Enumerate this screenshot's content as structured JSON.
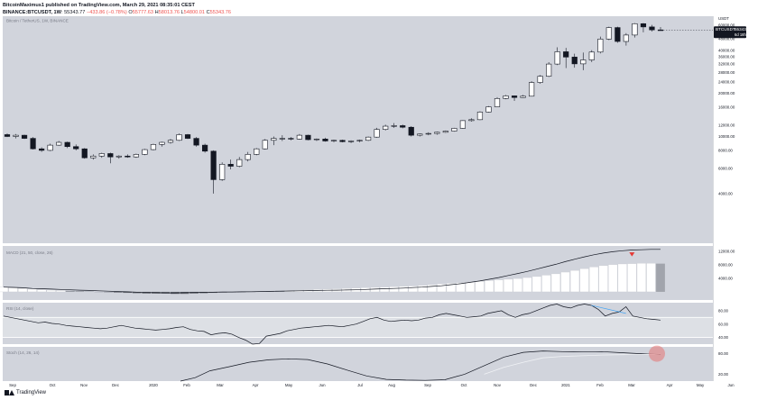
{
  "header": {
    "line1": "BitcoinMaximus1 published on TradingView.com, March 29, 2021 08:35:01 CEST",
    "symbol": "BINANCE:BTCUSDT, 1W",
    "last": "55343.77",
    "change": "−433.86 (−0.78%)",
    "o": "O",
    "o_val": "55777.63",
    "h": "H",
    "h_val": "58013.76",
    "l": "L",
    "l_val": "54800.01",
    "c": "C",
    "c_val": "55343.76"
  },
  "colors": {
    "background": "#d1d4dc",
    "bull": "#ffffff",
    "bear": "#131722",
    "line": "#131722",
    "accent_red": "#e53935",
    "accent_blue": "#42a5f5"
  },
  "chart_data": [
    {
      "type": "candlestick",
      "title": "Bitcoin / TetherUS, 1W, BINANCE",
      "price_tag": {
        "label": "BTCUSDT",
        "value": "55343.76",
        "countdown": "6d 18h"
      },
      "yticks": [
        "4000.00",
        "6000.00",
        "8000.00",
        "10000.00",
        "12000.00",
        "16000.00",
        "20000.00",
        "24000.00",
        "28000.00",
        "32000.00",
        "36000.00",
        "40000.00",
        "48000.00",
        "52000.00",
        "56000.00",
        "60000.00",
        "64000.00"
      ],
      "ytick_values": [
        4000,
        6000,
        8000,
        10000,
        12000,
        16000,
        20000,
        24000,
        28000,
        32000,
        36000,
        40000,
        48000,
        52000,
        56000,
        60000,
        64000
      ],
      "ylim": [
        1800,
        69000
      ],
      "ytop_label": "USDT",
      "xticks": [
        "Sep",
        "Oct",
        "Nov",
        "Dec",
        "2020",
        "Feb",
        "Mar",
        "Apr",
        "May",
        "Jun",
        "Jul",
        "Aug",
        "Sep",
        "Oct",
        "Nov",
        "Dec",
        "2021",
        "Feb",
        "Mar",
        "Apr",
        "May",
        "Jun"
      ],
      "candles": [
        [
          10300,
          10500,
          9900,
          10000
        ],
        [
          10000,
          10400,
          9700,
          10200
        ],
        [
          10200,
          10300,
          9600,
          9700
        ],
        [
          9700,
          9900,
          8100,
          8200
        ],
        [
          8200,
          8400,
          7800,
          8000
        ],
        [
          8000,
          8900,
          7900,
          8700
        ],
        [
          8700,
          9300,
          8600,
          9100
        ],
        [
          9100,
          9200,
          8300,
          8500
        ],
        [
          8500,
          8800,
          8000,
          8200
        ],
        [
          8200,
          8300,
          7000,
          7100
        ],
        [
          7100,
          7500,
          6900,
          7300
        ],
        [
          7300,
          7700,
          7100,
          7600
        ],
        [
          7600,
          7700,
          6500,
          7200
        ],
        [
          7200,
          7400,
          7000,
          7300
        ],
        [
          7300,
          7500,
          7100,
          7200
        ],
        [
          7200,
          7600,
          7100,
          7500
        ],
        [
          7500,
          8200,
          7400,
          8100
        ],
        [
          8100,
          8900,
          8000,
          8800
        ],
        [
          8800,
          9200,
          8500,
          9100
        ],
        [
          9100,
          9600,
          8900,
          9400
        ],
        [
          9400,
          10500,
          9300,
          10300
        ],
        [
          10300,
          10400,
          9600,
          9700
        ],
        [
          9700,
          9900,
          8500,
          8700
        ],
        [
          8700,
          8900,
          7700,
          7900
        ],
        [
          7900,
          8000,
          4000,
          5000
        ],
        [
          5000,
          6600,
          4900,
          6400
        ],
        [
          6400,
          6900,
          5900,
          6200
        ],
        [
          6200,
          7200,
          6100,
          6900
        ],
        [
          6900,
          7800,
          6700,
          7500
        ],
        [
          7500,
          8300,
          7400,
          8200
        ],
        [
          8200,
          9600,
          8100,
          9400
        ],
        [
          9400,
          10000,
          8700,
          9700
        ],
        [
          9700,
          10200,
          9300,
          9700
        ],
        [
          9700,
          9900,
          9400,
          9600
        ],
        [
          9600,
          10400,
          9500,
          10200
        ],
        [
          10200,
          10300,
          9400,
          9500
        ],
        [
          9500,
          9700,
          9300,
          9600
        ],
        [
          9600,
          9800,
          9200,
          9300
        ],
        [
          9300,
          9500,
          9100,
          9400
        ],
        [
          9400,
          9500,
          9100,
          9200
        ],
        [
          9200,
          9400,
          9000,
          9300
        ],
        [
          9300,
          9500,
          9100,
          9400
        ],
        [
          9400,
          10000,
          9300,
          9900
        ],
        [
          9900,
          11500,
          9800,
          11200
        ],
        [
          11200,
          12100,
          11000,
          11800
        ],
        [
          11800,
          12400,
          11500,
          11900
        ],
        [
          11900,
          12100,
          11400,
          11600
        ],
        [
          11600,
          11800,
          10000,
          10200
        ],
        [
          10200,
          10500,
          10000,
          10400
        ],
        [
          10400,
          10700,
          10200,
          10500
        ],
        [
          10500,
          10800,
          10300,
          10700
        ],
        [
          10700,
          11000,
          10600,
          10900
        ],
        [
          10900,
          11500,
          10800,
          11400
        ],
        [
          11400,
          13000,
          11300,
          12900
        ],
        [
          12900,
          13400,
          12700,
          13100
        ],
        [
          13100,
          15000,
          13000,
          14800
        ],
        [
          14800,
          16300,
          14700,
          16100
        ],
        [
          16100,
          18800,
          16000,
          18400
        ],
        [
          18400,
          19500,
          18200,
          19200
        ],
        [
          19200,
          19300,
          17700,
          18700
        ],
        [
          18700,
          19500,
          18600,
          19100
        ],
        [
          19100,
          24300,
          19000,
          23800
        ],
        [
          23800,
          26800,
          23300,
          26300
        ],
        [
          26300,
          33000,
          26000,
          32000
        ],
        [
          32000,
          41900,
          31500,
          39000
        ],
        [
          39000,
          41500,
          30000,
          35800
        ],
        [
          35800,
          37800,
          30200,
          32100
        ],
        [
          32100,
          38500,
          29000,
          34200
        ],
        [
          34200,
          40000,
          33000,
          38800
        ],
        [
          38800,
          49700,
          38000,
          47800
        ],
        [
          47800,
          58300,
          47000,
          57500
        ],
        [
          57500,
          58300,
          45000,
          46000
        ],
        [
          46000,
          52600,
          43000,
          51000
        ],
        [
          51000,
          61800,
          49000,
          61200
        ],
        [
          61200,
          61800,
          53300,
          58100
        ],
        [
          58100,
          60000,
          54000,
          55400
        ],
        [
          55400,
          58000,
          54800,
          55343
        ]
      ]
    },
    {
      "type": "histogram+line",
      "title": "MACD (21, 50, close, 26)",
      "yticks": [
        "12000.00",
        "8000.00",
        "4000.00"
      ],
      "ytick_values": [
        12000,
        8000,
        4000
      ],
      "ylim": [
        -2400,
        13500
      ],
      "histogram": [
        1400,
        1200,
        1000,
        800,
        600,
        500,
        400,
        300,
        200,
        100,
        0,
        -100,
        -200,
        -300,
        -400,
        -500,
        -500,
        -500,
        -600,
        -600,
        -500,
        -400,
        -300,
        -200,
        -100,
        -100,
        0,
        100,
        200,
        300,
        400,
        500,
        600,
        700,
        800,
        900,
        1000,
        1100,
        1200,
        1300,
        1400,
        1500,
        1600,
        1700,
        1900,
        2100,
        2300,
        2500,
        2700,
        2900,
        3100,
        3300,
        3500,
        3700,
        3900,
        4200,
        4500,
        4900,
        5300,
        5800,
        6300,
        6800,
        7300,
        7700,
        8000,
        8200,
        8300,
        8400,
        8400,
        8300
      ],
      "macd_line": [
        1400,
        1300,
        1200,
        1000,
        900,
        800,
        700,
        600,
        500,
        400,
        300,
        200,
        100,
        0,
        -100,
        -200,
        -250,
        -300,
        -300,
        -250,
        -200,
        -150,
        -100,
        -50,
        -50,
        0,
        50,
        100,
        150,
        200,
        250,
        300,
        350,
        400,
        450,
        500,
        550,
        600,
        700,
        800,
        900,
        1000,
        1100,
        1250,
        1400,
        1600,
        1800,
        2100,
        2400,
        2800,
        3200,
        3700,
        4200,
        4800,
        5400,
        6000,
        6700,
        7400,
        8100,
        8900,
        9600,
        10300,
        10900,
        11400,
        11800,
        12100,
        12300,
        12400,
        12500,
        12500
      ],
      "marker": "down-arrow"
    },
    {
      "type": "line",
      "title": "RSI (14, close)",
      "yticks": [
        "80.00",
        "60.00",
        "40.00"
      ],
      "ytick_values": [
        80,
        60,
        40
      ],
      "ylim": [
        30,
        92
      ],
      "band": [
        40,
        70
      ],
      "values": [
        72,
        70,
        68,
        66,
        64,
        62,
        63,
        61,
        60,
        58,
        57,
        56,
        55,
        54,
        53,
        54,
        56,
        58,
        56,
        54,
        53,
        52,
        51,
        52,
        53,
        55,
        56,
        52,
        50,
        49,
        44,
        46,
        47,
        45,
        40,
        36,
        30,
        31,
        42,
        44,
        46,
        50,
        52,
        54,
        55,
        56,
        57,
        58,
        57,
        56,
        58,
        60,
        64,
        68,
        70,
        66,
        64,
        65,
        66,
        65,
        66,
        69,
        70,
        74,
        76,
        74,
        72,
        70,
        71,
        72,
        76,
        78,
        80,
        74,
        70,
        74,
        76,
        80,
        84,
        88,
        90,
        86,
        84,
        88,
        90,
        88,
        82,
        72,
        76,
        78,
        86,
        72,
        70,
        68,
        67,
        66
      ]
    },
    {
      "type": "line",
      "title": "Stoch (14, 26, 14)",
      "yticks": [
        "80.00",
        "20.00"
      ],
      "ytick_values": [
        80,
        20
      ],
      "ylim": [
        0,
        100
      ],
      "k": [
        null,
        null,
        null,
        null,
        null,
        null,
        null,
        null,
        null,
        null,
        null,
        null,
        null,
        null,
        null,
        null,
        null,
        null,
        null,
        null,
        null,
        null,
        null,
        null,
        null,
        null,
        null,
        null,
        null,
        null,
        null,
        null,
        null,
        null,
        null,
        null,
        null,
        null,
        null,
        null,
        null,
        null,
        null,
        null,
        null,
        null,
        null,
        null,
        null,
        null,
        null,
        null,
        null,
        null,
        null,
        null,
        null,
        null,
        null,
        null,
        null,
        null,
        null,
        null,
        null,
        null,
        null,
        null,
        null,
        null,
        null,
        null,
        null,
        null,
        null,
        null,
        null,
        null,
        null,
        null,
        null,
        null,
        null,
        null,
        null,
        null,
        null,
        null,
        null,
        null,
        null,
        null,
        null,
        null,
        null,
        null
      ],
      "k_line": [
        [
          42,
          0
        ],
        [
          45,
          10
        ],
        [
          48,
          30
        ],
        [
          52,
          42
        ],
        [
          56,
          55
        ],
        [
          60,
          62
        ],
        [
          64,
          65
        ],
        [
          68,
          63
        ],
        [
          72,
          50
        ],
        [
          76,
          32
        ],
        [
          80,
          15
        ],
        [
          84,
          5
        ],
        [
          88,
          3
        ],
        [
          92,
          2
        ],
        [
          96,
          4
        ],
        [
          100,
          20
        ],
        [
          104,
          45
        ],
        [
          108,
          70
        ],
        [
          112,
          84
        ],
        [
          116,
          88
        ],
        [
          120,
          86
        ],
        [
          124,
          85
        ],
        [
          128,
          86
        ],
        [
          132,
          83
        ],
        [
          136,
          80
        ],
        [
          140,
          78
        ]
      ],
      "d_line": [
        [
          104,
          20
        ],
        [
          108,
          40
        ],
        [
          112,
          55
        ],
        [
          116,
          68
        ],
        [
          120,
          72
        ],
        [
          124,
          74
        ],
        [
          128,
          76
        ],
        [
          132,
          77
        ],
        [
          136,
          78
        ],
        [
          140,
          79
        ]
      ]
    }
  ],
  "footer": {
    "brand": "TradingView"
  }
}
